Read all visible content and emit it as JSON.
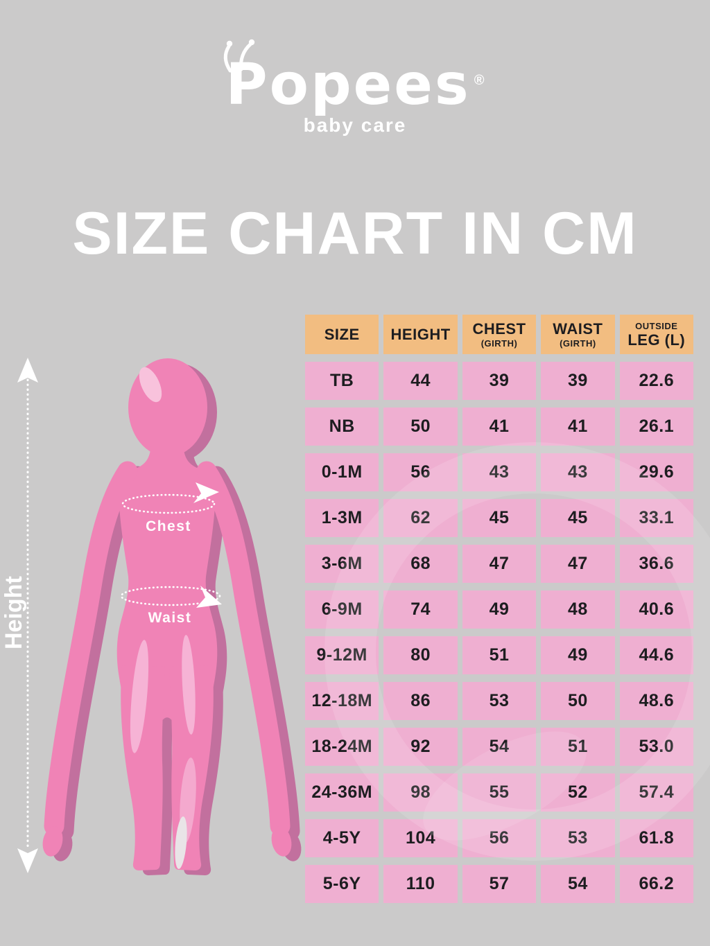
{
  "logo": {
    "name": "Popees",
    "registered": "®",
    "tagline": "baby care"
  },
  "title": "SIZE CHART IN CM",
  "figure": {
    "height_label": "Height",
    "chest_label": "Chest",
    "waist_label": "Waist"
  },
  "table": {
    "columns": [
      {
        "label": "SIZE"
      },
      {
        "label": "HEIGHT"
      },
      {
        "label": "CHEST",
        "sub": "(GIRTH)"
      },
      {
        "label": "WAIST",
        "sub": "(GIRTH)"
      },
      {
        "pre": "OUTSIDE",
        "label": "LEG (L)"
      }
    ],
    "rows": [
      [
        "TB",
        "44",
        "39",
        "39",
        "22.6"
      ],
      [
        "NB",
        "50",
        "41",
        "41",
        "26.1"
      ],
      [
        "0-1M",
        "56",
        "43",
        "43",
        "29.6"
      ],
      [
        "1-3M",
        "62",
        "45",
        "45",
        "33.1"
      ],
      [
        "3-6M",
        "68",
        "47",
        "47",
        "36.6"
      ],
      [
        "6-9M",
        "74",
        "49",
        "48",
        "40.6"
      ],
      [
        "9-12M",
        "80",
        "51",
        "49",
        "44.6"
      ],
      [
        "12-18M",
        "86",
        "53",
        "50",
        "48.6"
      ],
      [
        "18-24M",
        "92",
        "54",
        "51",
        "53.0"
      ],
      [
        "24-36M",
        "98",
        "55",
        "52",
        "57.4"
      ],
      [
        "4-5Y",
        "104",
        "56",
        "53",
        "61.8"
      ],
      [
        "5-6Y",
        "110",
        "57",
        "54",
        "66.2"
      ]
    ]
  },
  "colors": {
    "background": "#cbcaca",
    "header_bg": "#f2bd81",
    "cell_bg": "#efafd1",
    "figure_pink": "#f083b6",
    "figure_shadow": "#c2709e",
    "text_dark": "#1d1d20",
    "white": "#ffffff"
  },
  "chart_data": {
    "type": "table",
    "title": "SIZE CHART IN CM",
    "units": "cm",
    "columns": [
      "SIZE",
      "HEIGHT",
      "CHEST (GIRTH)",
      "WAIST (GIRTH)",
      "OUTSIDE LEG (L)"
    ],
    "rows": [
      [
        "TB",
        44,
        39,
        39,
        22.6
      ],
      [
        "NB",
        50,
        41,
        41,
        26.1
      ],
      [
        "0-1M",
        56,
        43,
        43,
        29.6
      ],
      [
        "1-3M",
        62,
        45,
        45,
        33.1
      ],
      [
        "3-6M",
        68,
        47,
        47,
        36.6
      ],
      [
        "6-9M",
        74,
        49,
        48,
        40.6
      ],
      [
        "9-12M",
        80,
        51,
        49,
        44.6
      ],
      [
        "12-18M",
        86,
        53,
        50,
        48.6
      ],
      [
        "18-24M",
        92,
        54,
        51,
        53.0
      ],
      [
        "24-36M",
        98,
        55,
        52,
        57.4
      ],
      [
        "4-5Y",
        104,
        56,
        53,
        61.8
      ],
      [
        "5-6Y",
        110,
        57,
        54,
        66.2
      ]
    ]
  }
}
